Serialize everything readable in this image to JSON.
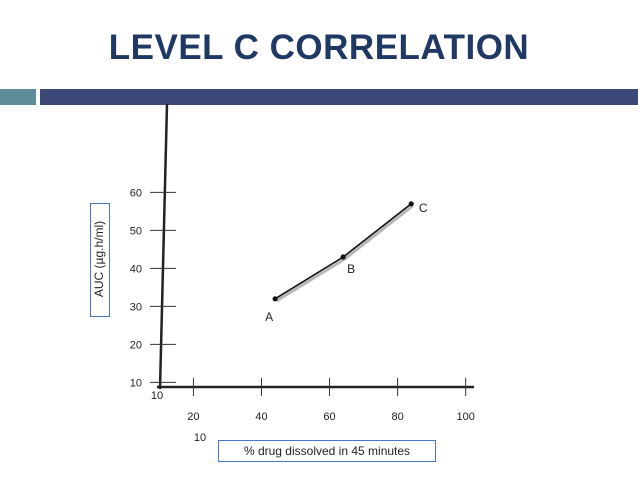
{
  "slide": {
    "title": "LEVEL C CORRELATION",
    "accent_teal": "#5f8e9a",
    "accent_navy": "#3c4877",
    "title_color": "#1f3864"
  },
  "chart_data": {
    "type": "line",
    "title": "",
    "xlabel": "% drug dissolved in 45 minutes",
    "ylabel": "AUC (µg.h/ml)",
    "x_tick_labels": [
      "20",
      "40",
      "60",
      "80",
      "100"
    ],
    "x_ticks": [
      20,
      40,
      60,
      80,
      100
    ],
    "y_tick_labels": [
      "10",
      "20",
      "30",
      "40",
      "50",
      "60"
    ],
    "y_ticks": [
      10,
      20,
      30,
      40,
      50,
      60
    ],
    "origin_labels": [
      "10",
      "10"
    ],
    "xlim": [
      7,
      100
    ],
    "ylim": [
      8,
      60
    ],
    "grid": false,
    "series": [
      {
        "points": [
          {
            "label": "A",
            "x": 44,
            "y": 32
          },
          {
            "label": "B",
            "x": 64,
            "y": 43
          },
          {
            "label": "C",
            "x": 84,
            "y": 57
          }
        ]
      }
    ],
    "line_color": "#111111"
  }
}
